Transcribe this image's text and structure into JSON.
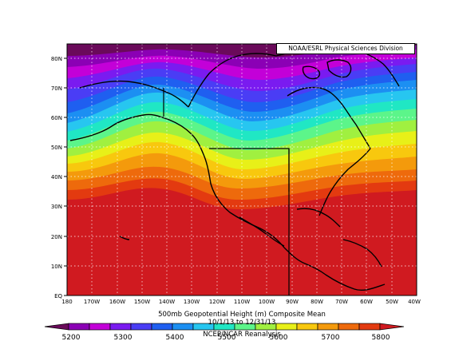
{
  "map": {
    "credit": "NOAA/ESRL Physical Sciences Division",
    "title": "500mb Geopotential Height (m) Composite Mean",
    "date_range": "10/1/13 to 12/31/13",
    "source": "NCEP/NCAR Reanalysis",
    "lat_labels": [
      "80N",
      "70N",
      "60N",
      "50N",
      "40N",
      "30N",
      "20N",
      "10N",
      "EQ"
    ],
    "lon_labels": [
      "180",
      "170W",
      "160W",
      "150W",
      "140W",
      "130W",
      "120W",
      "110W",
      "100W",
      "90W",
      "80W",
      "70W",
      "60W",
      "50W",
      "40W"
    ],
    "colorbar": {
      "values": [
        "5200",
        "5300",
        "5400",
        "5500",
        "5600",
        "5700",
        "5800"
      ],
      "colors": [
        "#6a0a5a",
        "#8b00b5",
        "#c300d8",
        "#7a1bf0",
        "#4a3df5",
        "#1f5ff0",
        "#1c8ff2",
        "#27c6f0",
        "#20e7c4",
        "#5cf58a",
        "#a0f040",
        "#e8f018",
        "#f8c80e",
        "#f49a0c",
        "#ee6a0c",
        "#e33a10",
        "#d01a20"
      ]
    }
  }
}
